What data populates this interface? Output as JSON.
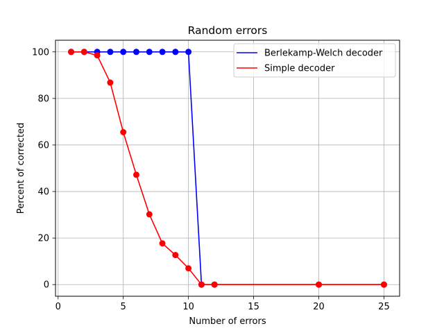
{
  "chart_data": {
    "type": "line",
    "title": "Random errors",
    "xlabel": "Number of errors",
    "ylabel": "Percent of corrected",
    "xlim": [
      -0.2,
      26.2
    ],
    "ylim": [
      -5,
      105
    ],
    "xticks": [
      0,
      5,
      10,
      15,
      20,
      25
    ],
    "yticks": [
      0,
      20,
      40,
      60,
      80,
      100
    ],
    "grid": true,
    "legend_position": "top-right",
    "series": [
      {
        "name": "Berlekamp-Welch decoder",
        "color": "#0000ff",
        "marker": "circle",
        "x": [
          1,
          2,
          3,
          4,
          5,
          6,
          7,
          8,
          9,
          10,
          11,
          12,
          20,
          25
        ],
        "y": [
          100,
          100,
          100,
          100,
          100,
          100,
          100,
          100,
          100,
          100,
          0,
          0,
          0,
          0
        ]
      },
      {
        "name": "Simple decoder",
        "color": "#ff0000",
        "marker": "circle",
        "x": [
          1,
          2,
          3,
          4,
          5,
          6,
          7,
          8,
          9,
          10,
          11,
          12,
          20,
          25
        ],
        "y": [
          100,
          100,
          98.5,
          86.8,
          65.5,
          47.2,
          30.2,
          17.7,
          12.7,
          7,
          0,
          0,
          0,
          0
        ]
      }
    ]
  }
}
